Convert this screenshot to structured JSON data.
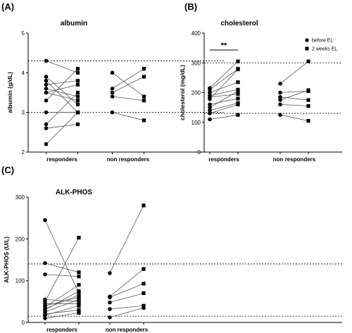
{
  "chart_data": [
    {
      "type": "scatter",
      "panel": "(A)",
      "title": "albumin",
      "ylabel": "albumin (g/dL)",
      "ylim": [
        2,
        5
      ],
      "yticks": [
        "2",
        "3",
        "4",
        "5"
      ],
      "categories": [
        "responders",
        "non responders"
      ],
      "reference_lines": [
        3.0,
        4.3
      ],
      "groups": [
        {
          "category": "responders",
          "pairs": [
            [
              4.3,
              4.0
            ],
            [
              3.9,
              3.2
            ],
            [
              3.8,
              3.0
            ],
            [
              3.7,
              3.8
            ],
            [
              3.6,
              3.4
            ],
            [
              3.5,
              3.7
            ],
            [
              3.5,
              3.3
            ],
            [
              3.3,
              4.1
            ],
            [
              3.0,
              3.0
            ],
            [
              2.7,
              3.5
            ],
            [
              2.6,
              2.7
            ],
            [
              2.2,
              3.0
            ]
          ]
        },
        {
          "category": "non responders",
          "pairs": [
            [
              4.0,
              3.4
            ],
            [
              3.6,
              4.1
            ],
            [
              3.5,
              3.9
            ],
            [
              3.4,
              3.3
            ],
            [
              3.0,
              2.8
            ]
          ]
        }
      ]
    },
    {
      "type": "scatter",
      "panel": "(B)",
      "title": "cholesterol",
      "ylabel": "cholesterol (mg/dL)",
      "ylim": [
        0,
        400
      ],
      "yticks": [
        "0",
        "100",
        "200",
        "300",
        "400"
      ],
      "categories": [
        "responders",
        "non responders"
      ],
      "reference_lines": [
        130,
        300
      ],
      "significance": "**",
      "legend": {
        "placement": "top-right",
        "entries": [
          {
            "label": "before EL",
            "marker": "circle"
          },
          {
            "label": "2 weeks EL",
            "marker": "square"
          }
        ]
      },
      "groups": [
        {
          "category": "responders",
          "pairs": [
            [
              215,
              305
            ],
            [
              210,
              280
            ],
            [
              200,
              235
            ],
            [
              190,
              210
            ],
            [
              185,
              195
            ],
            [
              178,
              278
            ],
            [
              160,
              180
            ],
            [
              150,
              205
            ],
            [
              140,
              165
            ],
            [
              130,
              160
            ],
            [
              110,
              125
            ]
          ]
        },
        {
          "category": "non responders",
          "pairs": [
            [
              230,
              305
            ],
            [
              200,
              205
            ],
            [
              185,
              175
            ],
            [
              175,
              208
            ],
            [
              160,
              155
            ],
            [
              125,
              105
            ]
          ]
        }
      ]
    },
    {
      "type": "scatter",
      "panel": "(C)",
      "title": "ALK-PHOS",
      "ylabel": "ALK-PHOS (U/L)",
      "ylim": [
        0,
        300
      ],
      "yticks": [
        "0",
        "100",
        "200",
        "300"
      ],
      "categories": [
        "responders",
        "non responders"
      ],
      "reference_lines": [
        15,
        140
      ],
      "groups": [
        {
          "category": "responders",
          "pairs": [
            [
              245,
              70
            ],
            [
              142,
              120
            ],
            [
              115,
              110
            ],
            [
              55,
              50
            ],
            [
              50,
              203
            ],
            [
              45,
              45
            ],
            [
              40,
              60
            ],
            [
              37,
              90
            ],
            [
              33,
              65
            ],
            [
              30,
              75
            ],
            [
              25,
              55
            ],
            [
              20,
              30
            ],
            [
              17,
              40
            ],
            [
              10,
              23
            ]
          ]
        },
        {
          "category": "non responders",
          "pairs": [
            [
              118,
              280
            ],
            [
              62,
              128
            ],
            [
              60,
              93
            ],
            [
              48,
              70
            ],
            [
              32,
              40
            ],
            [
              12,
              35
            ]
          ]
        }
      ]
    }
  ]
}
